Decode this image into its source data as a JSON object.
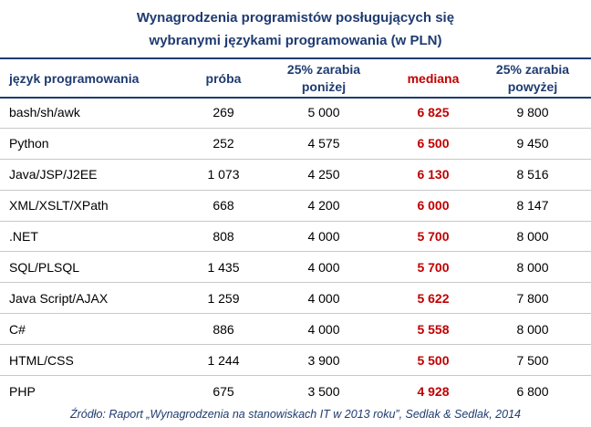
{
  "title": {
    "line1": "Wynagrodzenia programistów posługujących się",
    "line2": "wybranymi językami programowania (w PLN)"
  },
  "colors": {
    "heading": "#1f3b70",
    "median": "#c00000",
    "row_divider": "#c8c8c8"
  },
  "headers": {
    "language": "język programowania",
    "sample": "próba",
    "lower25": "25% zarabia\nponiżej",
    "median": "mediana",
    "upper25": "25% zarabia\npowyżej"
  },
  "rows": [
    {
      "language": "bash/sh/awk",
      "sample": "269",
      "lower25": "5 000",
      "median": "6 825",
      "upper25": "9 800"
    },
    {
      "language": "Python",
      "sample": "252",
      "lower25": "4 575",
      "median": "6 500",
      "upper25": "9 450"
    },
    {
      "language": "Java/JSP/J2EE",
      "sample": "1 073",
      "lower25": "4 250",
      "median": "6 130",
      "upper25": "8 516"
    },
    {
      "language": "XML/XSLT/XPath",
      "sample": "668",
      "lower25": "4 200",
      "median": "6 000",
      "upper25": "8 147"
    },
    {
      "language": ".NET",
      "sample": "808",
      "lower25": "4 000",
      "median": "5 700",
      "upper25": "8 000"
    },
    {
      "language": "SQL/PLSQL",
      "sample": "1 435",
      "lower25": "4 000",
      "median": "5 700",
      "upper25": "8 000"
    },
    {
      "language": "Java Script/AJAX",
      "sample": "1 259",
      "lower25": "4 000",
      "median": "5 622",
      "upper25": "7 800"
    },
    {
      "language": "C#",
      "sample": "886",
      "lower25": "4 000",
      "median": "5 558",
      "upper25": "8 000"
    },
    {
      "language": "HTML/CSS",
      "sample": "1 244",
      "lower25": "3 900",
      "median": "5 500",
      "upper25": "7 500"
    },
    {
      "language": "PHP",
      "sample": "675",
      "lower25": "3 500",
      "median": "4 928",
      "upper25": "6 800"
    }
  ],
  "footer": "Źródło: Raport „Wynagrodzenia na stanowiskach IT w 2013 roku”, Sedlak & Sedlak, 2014"
}
